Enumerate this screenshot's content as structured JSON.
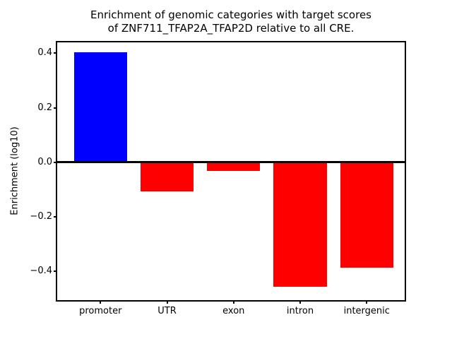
{
  "figure": {
    "title_line1": "Enrichment of genomic categories with target scores",
    "title_line2": "of ZNF711_TFAP2A_TFAP2D relative to all CRE.",
    "ylabel": "Enrichment (log10)"
  },
  "chart_data": {
    "type": "bar",
    "title": "Enrichment of genomic categories with target scores\nof ZNF711_TFAP2A_TFAP2D relative to all CRE.",
    "xlabel": "",
    "ylabel": "Enrichment (log10)",
    "categories": [
      "promoter",
      "UTR",
      "exon",
      "intron",
      "intergenic"
    ],
    "values": [
      0.403,
      -0.106,
      -0.032,
      -0.458,
      -0.388
    ],
    "bar_colors": [
      "#0000ff",
      "#ff0000",
      "#ff0000",
      "#ff0000",
      "#ff0000"
    ],
    "bar_width_fraction": 0.8,
    "xlim": [
      -0.65,
      4.57
    ],
    "ylim": [
      -0.506,
      0.44
    ],
    "yticks": [
      0.4,
      0.2,
      0.0,
      -0.2,
      -0.4
    ],
    "ytick_labels": [
      "0.4",
      "0.2",
      "0.0",
      "−0.2",
      "−0.4"
    ],
    "zero_line": true,
    "grid": false,
    "legend": false,
    "axis_color": "#000000",
    "background_color": "#ffffff"
  }
}
